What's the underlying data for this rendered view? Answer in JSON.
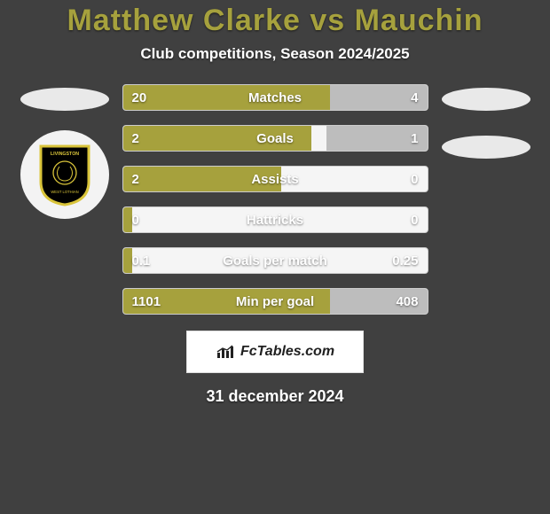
{
  "title": "Matthew Clarke vs Mauchin",
  "title_color": "#a6a13d",
  "subtitle": "Club competitions, Season 2024/2025",
  "background_color": "#404040",
  "colors": {
    "left_fill": "#a6a13d",
    "right_fill": "#bdbdbd",
    "bar_border": "#cccccc",
    "text": "#ffffff",
    "ellipse": "#e9e9e9"
  },
  "club_badge": {
    "shield_color": "#000000",
    "shield_border": "#d9c43a",
    "inner": "Livingston"
  },
  "stats": [
    {
      "label": "Matches",
      "left_value": "20",
      "right_value": "4",
      "left_pct": 68,
      "right_pct": 32
    },
    {
      "label": "Goals",
      "left_value": "2",
      "right_value": "1",
      "left_pct": 62,
      "right_pct": 33
    },
    {
      "label": "Assists",
      "left_value": "2",
      "right_value": "0",
      "left_pct": 52,
      "right_pct": 0
    },
    {
      "label": "Hattricks",
      "left_value": "0",
      "right_value": "0",
      "left_pct": 3,
      "right_pct": 0
    },
    {
      "label": "Goals per match",
      "left_value": "0.1",
      "right_value": "0.25",
      "left_pct": 3,
      "right_pct": 0
    },
    {
      "label": "Min per goal",
      "left_value": "1101",
      "right_value": "408",
      "left_pct": 68,
      "right_pct": 32
    }
  ],
  "branding": {
    "label": "FcTables.com"
  },
  "date": "31 december 2024"
}
